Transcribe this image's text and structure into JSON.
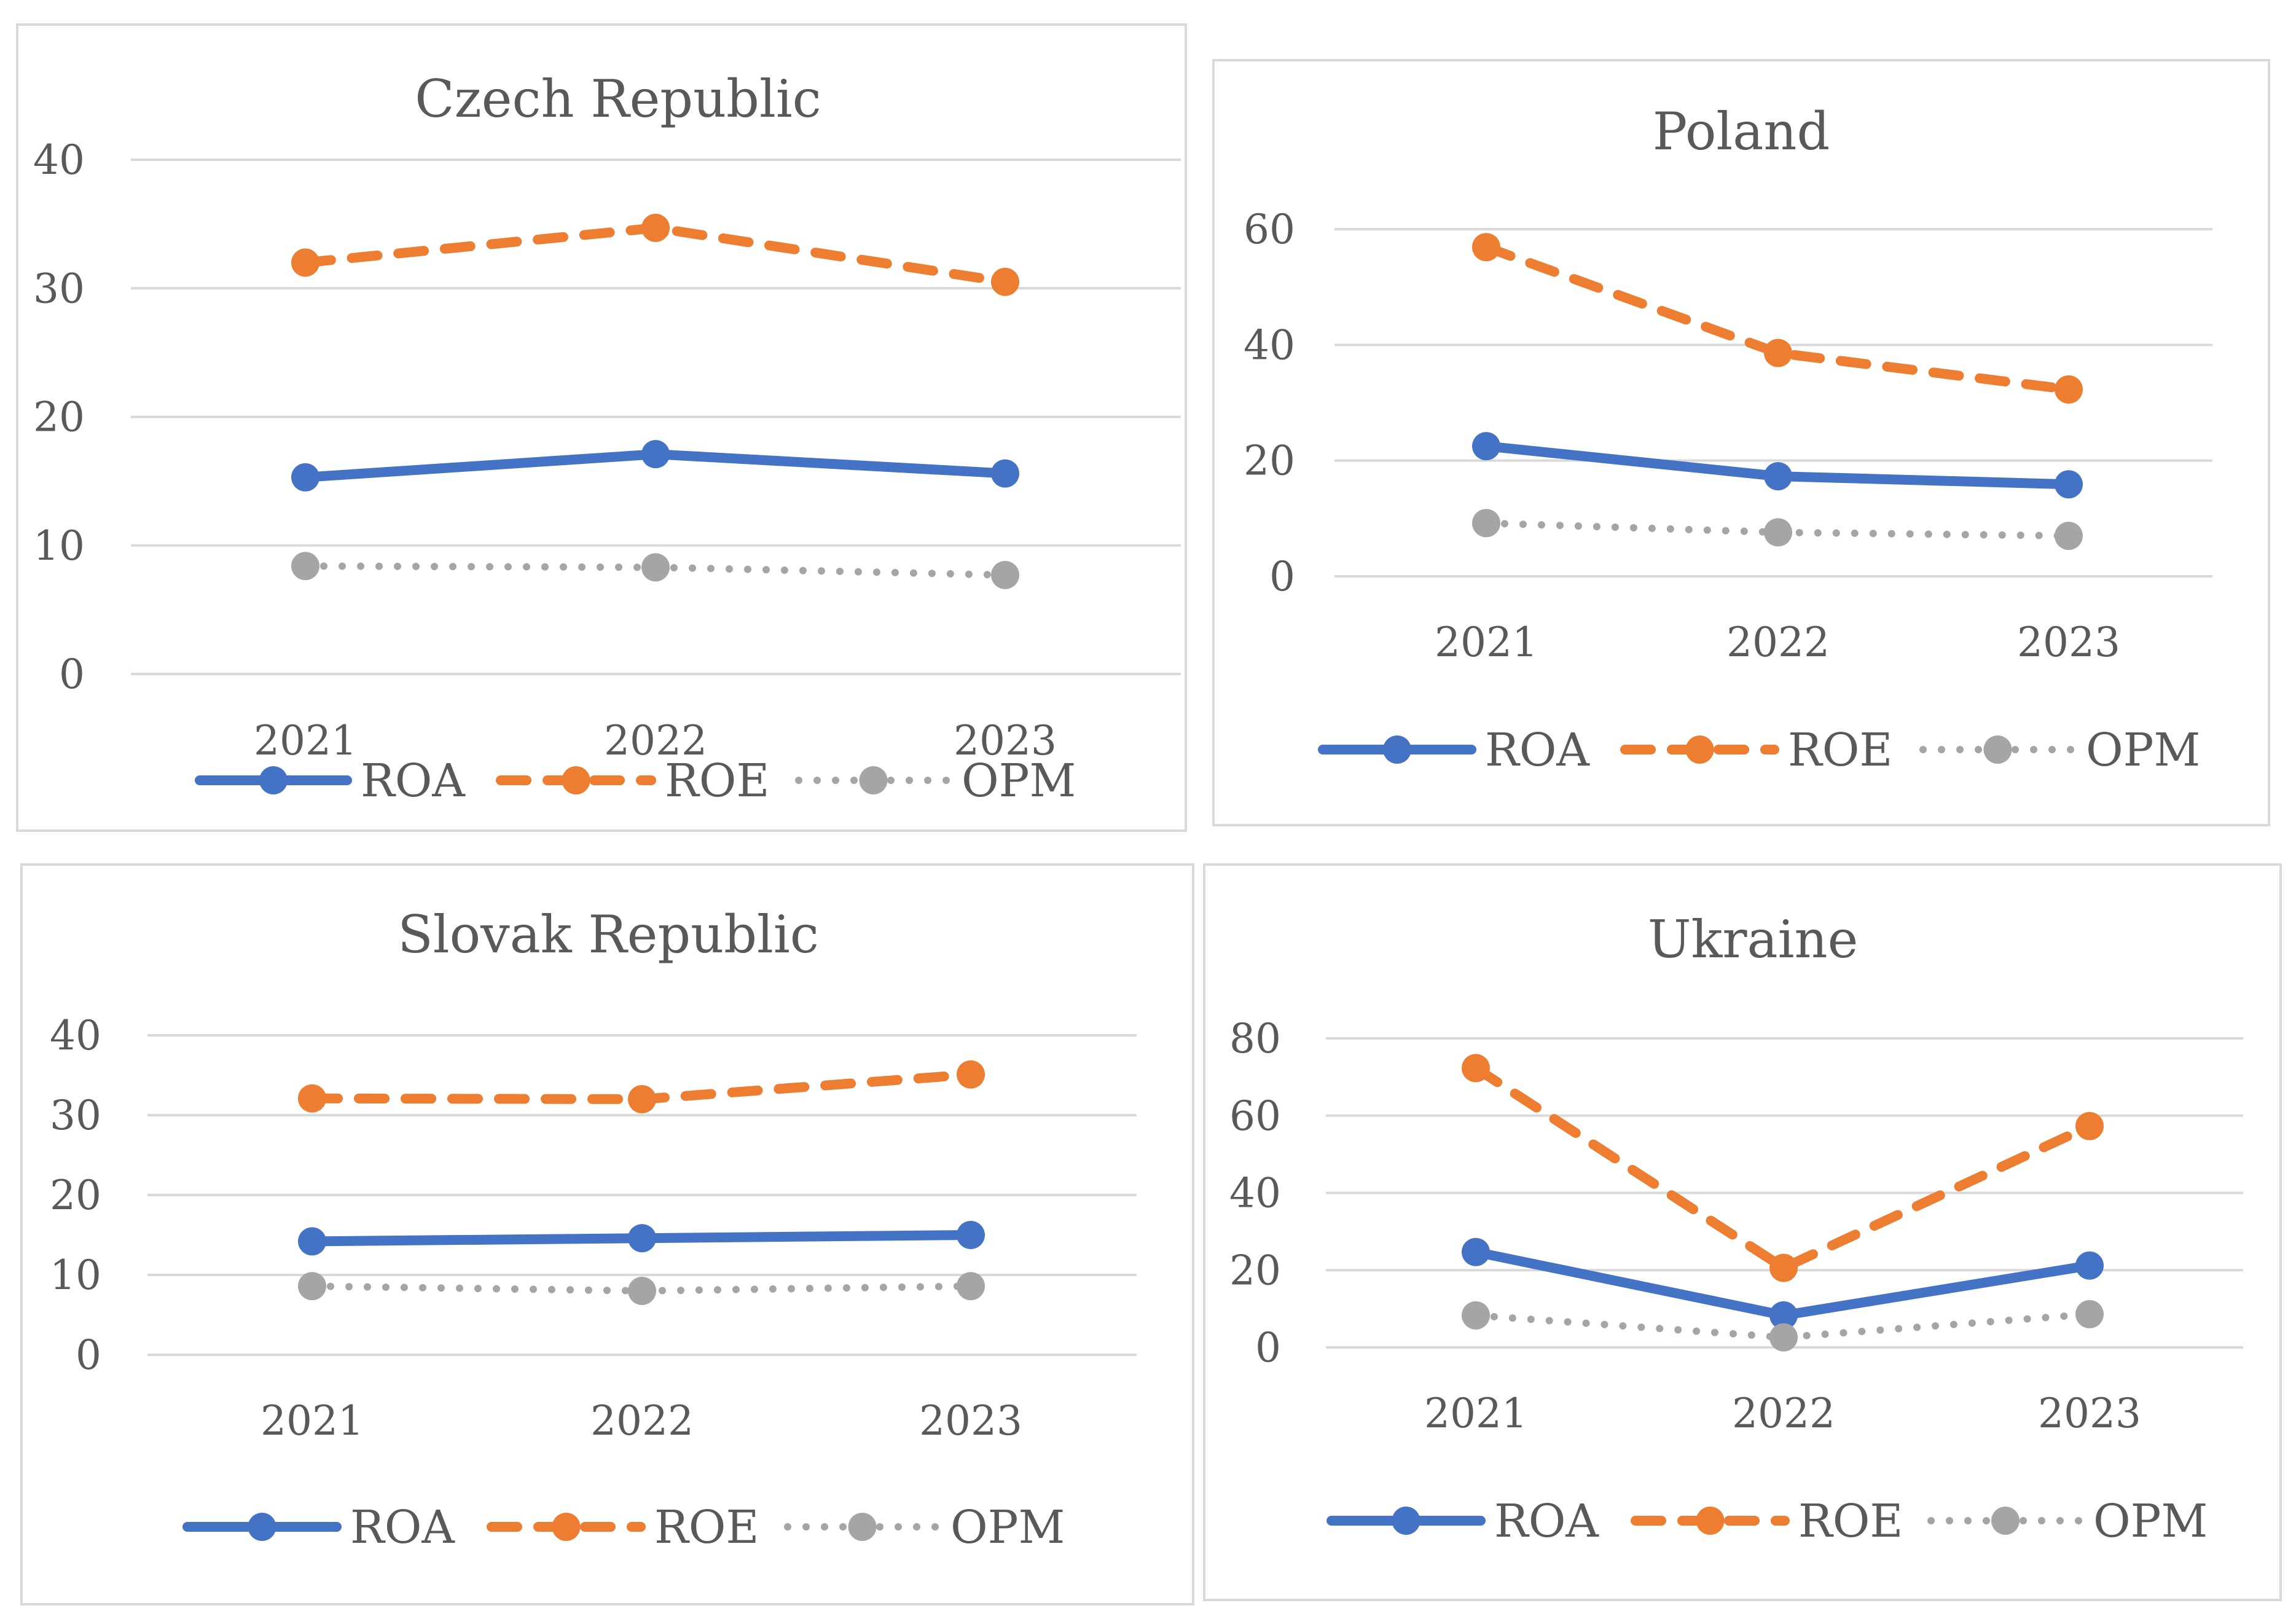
{
  "colors": {
    "roa": "#4472C4",
    "roe": "#ED7D31",
    "opm": "#A5A5A5",
    "grid": "#D9D9D9",
    "border": "#D9D9D9",
    "text": "#595959"
  },
  "chart_data": [
    {
      "type": "line",
      "title": "Czech Republic",
      "categories": [
        "2021",
        "2022",
        "2023"
      ],
      "ylim": [
        0,
        40
      ],
      "yticks": [
        "0",
        "10",
        "20",
        "30",
        "40"
      ],
      "grid": true,
      "legend": "bottom",
      "series": [
        {
          "name": "ROA",
          "values": [
            15.3,
            17.1,
            15.6
          ]
        },
        {
          "name": "ROE",
          "values": [
            32.0,
            34.7,
            30.5
          ]
        },
        {
          "name": "OPM",
          "values": [
            8.4,
            8.3,
            7.7
          ]
        }
      ]
    },
    {
      "type": "line",
      "title": "Poland",
      "categories": [
        "2021",
        "2022",
        "2023"
      ],
      "ylim": [
        0,
        60
      ],
      "yticks": [
        "0",
        "20",
        "40",
        "60"
      ],
      "grid": true,
      "legend": "bottom",
      "series": [
        {
          "name": "ROA",
          "values": [
            22.5,
            17.3,
            15.9
          ]
        },
        {
          "name": "ROE",
          "values": [
            56.9,
            38.6,
            32.3
          ]
        },
        {
          "name": "OPM",
          "values": [
            9.2,
            7.6,
            7.0
          ]
        }
      ]
    },
    {
      "type": "line",
      "title": "Slovak Republic",
      "categories": [
        "2021",
        "2022",
        "2023"
      ],
      "ylim": [
        0,
        40
      ],
      "yticks": [
        "0",
        "10",
        "20",
        "30",
        "40"
      ],
      "grid": true,
      "legend": "bottom",
      "series": [
        {
          "name": "ROA",
          "values": [
            14.2,
            14.6,
            15.0
          ]
        },
        {
          "name": "ROE",
          "values": [
            32.1,
            32.0,
            35.1
          ]
        },
        {
          "name": "OPM",
          "values": [
            8.6,
            8.0,
            8.6
          ]
        }
      ]
    },
    {
      "type": "line",
      "title": "Ukraine",
      "categories": [
        "2021",
        "2022",
        "2023"
      ],
      "ylim": [
        0,
        80
      ],
      "yticks": [
        "0",
        "20",
        "40",
        "60",
        "80"
      ],
      "grid": true,
      "legend": "bottom",
      "series": [
        {
          "name": "ROA",
          "values": [
            24.7,
            8.3,
            21.2
          ]
        },
        {
          "name": "ROE",
          "values": [
            72.3,
            20.6,
            57.3
          ]
        },
        {
          "name": "OPM",
          "values": [
            8.3,
            2.6,
            8.6
          ]
        }
      ]
    }
  ]
}
